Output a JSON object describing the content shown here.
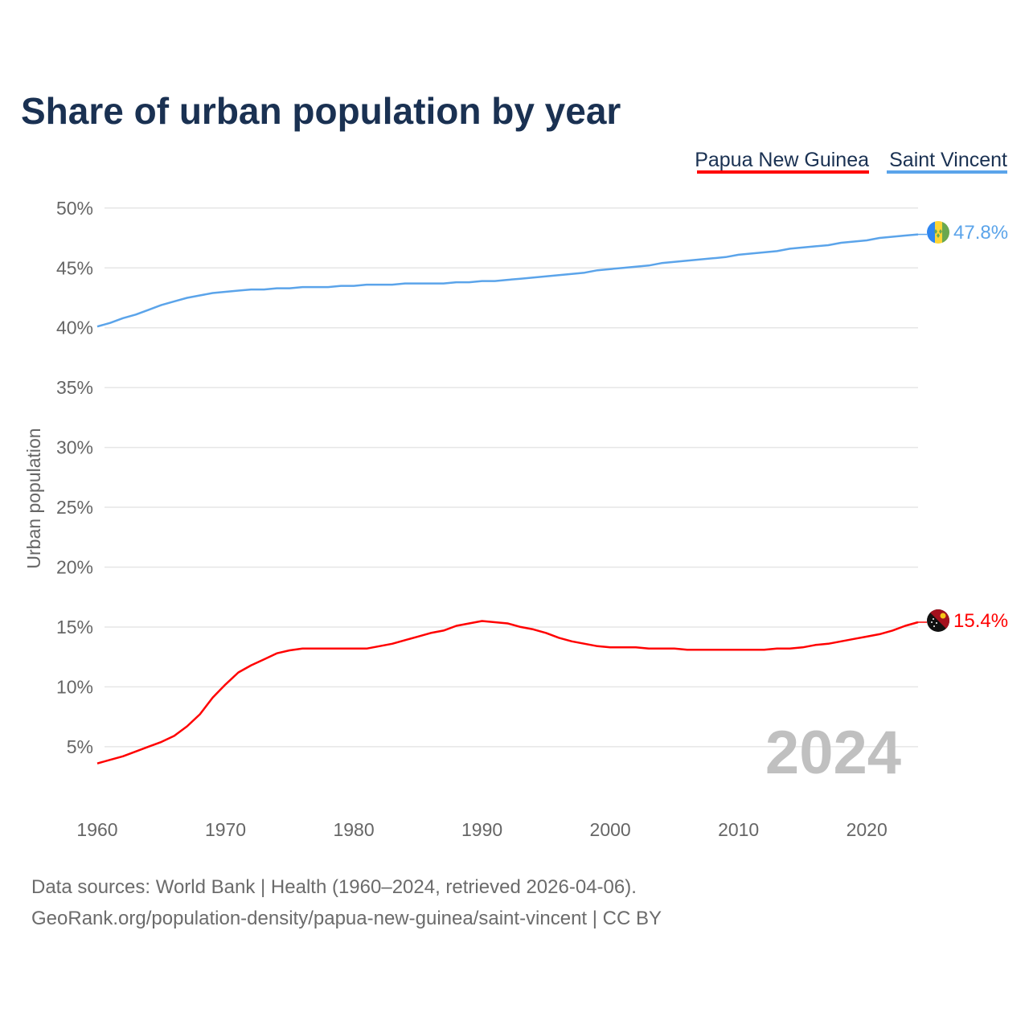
{
  "chart_data": {
    "type": "line",
    "title": "Share of urban population by year",
    "ylabel": "Urban population",
    "xlabel": "",
    "ylim": [
      0,
      50
    ],
    "xlim": [
      1960,
      2024
    ],
    "y_ticks": [
      "5%",
      "10%",
      "15%",
      "20%",
      "25%",
      "30%",
      "35%",
      "40%",
      "45%",
      "50%"
    ],
    "y_tick_values": [
      5,
      10,
      15,
      20,
      25,
      30,
      35,
      40,
      45,
      50
    ],
    "x_ticks": [
      "1960",
      "1970",
      "1980",
      "1990",
      "2000",
      "2010",
      "2020"
    ],
    "x_tick_values": [
      1960,
      1970,
      1980,
      1990,
      2000,
      2010,
      2020
    ],
    "grid": true,
    "legend_placement": "top-right",
    "watermark_year": "2024",
    "x": [
      1960,
      1961,
      1962,
      1963,
      1964,
      1965,
      1966,
      1967,
      1968,
      1969,
      1970,
      1971,
      1972,
      1973,
      1974,
      1975,
      1976,
      1977,
      1978,
      1979,
      1980,
      1981,
      1982,
      1983,
      1984,
      1985,
      1986,
      1987,
      1988,
      1989,
      1990,
      1991,
      1992,
      1993,
      1994,
      1995,
      1996,
      1997,
      1998,
      1999,
      2000,
      2001,
      2002,
      2003,
      2004,
      2005,
      2006,
      2007,
      2008,
      2009,
      2010,
      2011,
      2012,
      2013,
      2014,
      2015,
      2016,
      2017,
      2018,
      2019,
      2020,
      2021,
      2022,
      2023,
      2024
    ],
    "series": [
      {
        "name": "Papua New Guinea",
        "color": "#ff0000",
        "end_label": "15.4%",
        "values": [
          3.6,
          3.9,
          4.2,
          4.6,
          5.0,
          5.4,
          5.9,
          6.7,
          7.7,
          9.1,
          10.2,
          11.2,
          11.8,
          12.3,
          12.8,
          13.05,
          13.2,
          13.2,
          13.2,
          13.2,
          13.2,
          13.2,
          13.4,
          13.6,
          13.9,
          14.2,
          14.5,
          14.7,
          15.1,
          15.3,
          15.5,
          15.4,
          15.3,
          15.0,
          14.8,
          14.5,
          14.1,
          13.8,
          13.6,
          13.4,
          13.3,
          13.3,
          13.3,
          13.2,
          13.2,
          13.2,
          13.1,
          13.1,
          13.1,
          13.1,
          13.1,
          13.1,
          13.1,
          13.2,
          13.2,
          13.3,
          13.5,
          13.6,
          13.8,
          14.0,
          14.2,
          14.4,
          14.7,
          15.1,
          15.4
        ]
      },
      {
        "name": "Saint Vincent",
        "color": "#5ba4ea",
        "end_label": "47.8%",
        "values": [
          40.1,
          40.4,
          40.8,
          41.1,
          41.5,
          41.9,
          42.2,
          42.5,
          42.7,
          42.9,
          43.0,
          43.1,
          43.2,
          43.2,
          43.3,
          43.3,
          43.4,
          43.4,
          43.4,
          43.5,
          43.5,
          43.6,
          43.6,
          43.6,
          43.7,
          43.7,
          43.7,
          43.7,
          43.8,
          43.8,
          43.9,
          43.9,
          44.0,
          44.1,
          44.2,
          44.3,
          44.4,
          44.5,
          44.6,
          44.8,
          44.9,
          45.0,
          45.1,
          45.2,
          45.4,
          45.5,
          45.6,
          45.7,
          45.8,
          45.9,
          46.1,
          46.2,
          46.3,
          46.4,
          46.6,
          46.7,
          46.8,
          46.9,
          47.1,
          47.2,
          47.3,
          47.5,
          47.6,
          47.7,
          47.8
        ]
      }
    ]
  },
  "footer": {
    "line1": "Data sources: World Bank | Health (1960–2024, retrieved 2026-04-06).",
    "line2": "GeoRank.org/population-density/papua-new-guinea/saint-vincent | CC BY"
  },
  "colors": {
    "title": "#1a3152",
    "text": "#666666",
    "watermark": "#c0c0c0"
  }
}
